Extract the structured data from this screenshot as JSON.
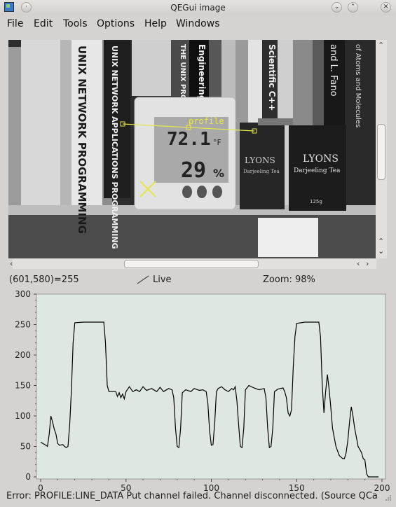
{
  "window": {
    "title": "QEGui image"
  },
  "menu": [
    "File",
    "Edit",
    "Tools",
    "Options",
    "Help",
    "Windows"
  ],
  "image": {
    "overlay_label": "profile",
    "book_titles": [
      "UNIX NETWORK PROGRAMMING",
      "UNIX NETWORK APPLICATIONS PROGRAMMING",
      "THE UNIX PROGRAMMING",
      "Engineering C++",
      "Scientific C++",
      "and L. Fano",
      "of Atoms and Molecules"
    ],
    "tea_labels": [
      "LYONS",
      "Darjeeling Tea",
      "LYONS",
      "Darjeeling Tea",
      "125g"
    ],
    "display_readings": [
      "72.1",
      "°F",
      "29",
      "%"
    ]
  },
  "status": {
    "pixel_readout": "(601,580)=255",
    "mode_label": "Live",
    "zoom_label": "Zoom: 98%"
  },
  "error": {
    "message": "Error: PROFILE:LINE_DATA Put channel failed. Channel disconnected. (Source QCa"
  },
  "colors": {
    "plot_bg": "#dfe8e0",
    "line": "#000000",
    "overlay": "#e6e64a"
  },
  "chart_data": {
    "type": "line",
    "xlim": [
      0,
      200
    ],
    "ylim": [
      0,
      300
    ],
    "x_ticks": [
      0,
      50,
      100,
      150,
      200
    ],
    "y_ticks": [
      0,
      50,
      100,
      150,
      200,
      250,
      300
    ],
    "grid": false,
    "points": [
      [
        0,
        57
      ],
      [
        3,
        52
      ],
      [
        4,
        50
      ],
      [
        5,
        70
      ],
      [
        6,
        100
      ],
      [
        7,
        90
      ],
      [
        8,
        78
      ],
      [
        9,
        70
      ],
      [
        10,
        55
      ],
      [
        11,
        52
      ],
      [
        13,
        53
      ],
      [
        14,
        50
      ],
      [
        15,
        48
      ],
      [
        16,
        50
      ],
      [
        17,
        85
      ],
      [
        18,
        140
      ],
      [
        19,
        220
      ],
      [
        20,
        253
      ],
      [
        25,
        254
      ],
      [
        30,
        254
      ],
      [
        35,
        254
      ],
      [
        37,
        254
      ],
      [
        38,
        220
      ],
      [
        39,
        150
      ],
      [
        40,
        140
      ],
      [
        44,
        140
      ],
      [
        45,
        132
      ],
      [
        46,
        138
      ],
      [
        47,
        130
      ],
      [
        48,
        136
      ],
      [
        49,
        128
      ],
      [
        50,
        140
      ],
      [
        52,
        148
      ],
      [
        54,
        140
      ],
      [
        56,
        143
      ],
      [
        58,
        140
      ],
      [
        60,
        148
      ],
      [
        62,
        142
      ],
      [
        65,
        145
      ],
      [
        68,
        140
      ],
      [
        70,
        147
      ],
      [
        72,
        140
      ],
      [
        75,
        145
      ],
      [
        77,
        143
      ],
      [
        78,
        130
      ],
      [
        79,
        80
      ],
      [
        80,
        50
      ],
      [
        81,
        48
      ],
      [
        82,
        80
      ],
      [
        83,
        138
      ],
      [
        85,
        143
      ],
      [
        88,
        140
      ],
      [
        90,
        145
      ],
      [
        93,
        142
      ],
      [
        95,
        143
      ],
      [
        97,
        140
      ],
      [
        98,
        120
      ],
      [
        99,
        75
      ],
      [
        100,
        52
      ],
      [
        101,
        53
      ],
      [
        102,
        90
      ],
      [
        103,
        140
      ],
      [
        104,
        145
      ],
      [
        106,
        148
      ],
      [
        108,
        143
      ],
      [
        110,
        140
      ],
      [
        112,
        145
      ],
      [
        113,
        143
      ],
      [
        114,
        148
      ],
      [
        115,
        125
      ],
      [
        116,
        85
      ],
      [
        117,
        50
      ],
      [
        118,
        48
      ],
      [
        119,
        80
      ],
      [
        120,
        143
      ],
      [
        122,
        150
      ],
      [
        125,
        146
      ],
      [
        128,
        143
      ],
      [
        131,
        145
      ],
      [
        132,
        130
      ],
      [
        133,
        80
      ],
      [
        134,
        48
      ],
      [
        135,
        50
      ],
      [
        136,
        80
      ],
      [
        137,
        140
      ],
      [
        139,
        144
      ],
      [
        142,
        146
      ],
      [
        143,
        140
      ],
      [
        144,
        130
      ],
      [
        145,
        105
      ],
      [
        146,
        100
      ],
      [
        147,
        110
      ],
      [
        148,
        180
      ],
      [
        149,
        230
      ],
      [
        150,
        252
      ],
      [
        155,
        254
      ],
      [
        160,
        254
      ],
      [
        163,
        254
      ],
      [
        164,
        230
      ],
      [
        165,
        150
      ],
      [
        166,
        105
      ],
      [
        167,
        140
      ],
      [
        168,
        168
      ],
      [
        169,
        145
      ],
      [
        170,
        115
      ],
      [
        171,
        80
      ],
      [
        173,
        50
      ],
      [
        175,
        35
      ],
      [
        177,
        30
      ],
      [
        178,
        30
      ],
      [
        179,
        40
      ],
      [
        180,
        60
      ],
      [
        181,
        90
      ],
      [
        182,
        115
      ],
      [
        183,
        100
      ],
      [
        184,
        80
      ],
      [
        185,
        65
      ],
      [
        186,
        50
      ],
      [
        187,
        45
      ],
      [
        188,
        40
      ],
      [
        189,
        30
      ],
      [
        190,
        28
      ],
      [
        191,
        5
      ],
      [
        192,
        0
      ],
      [
        198,
        0
      ]
    ]
  }
}
